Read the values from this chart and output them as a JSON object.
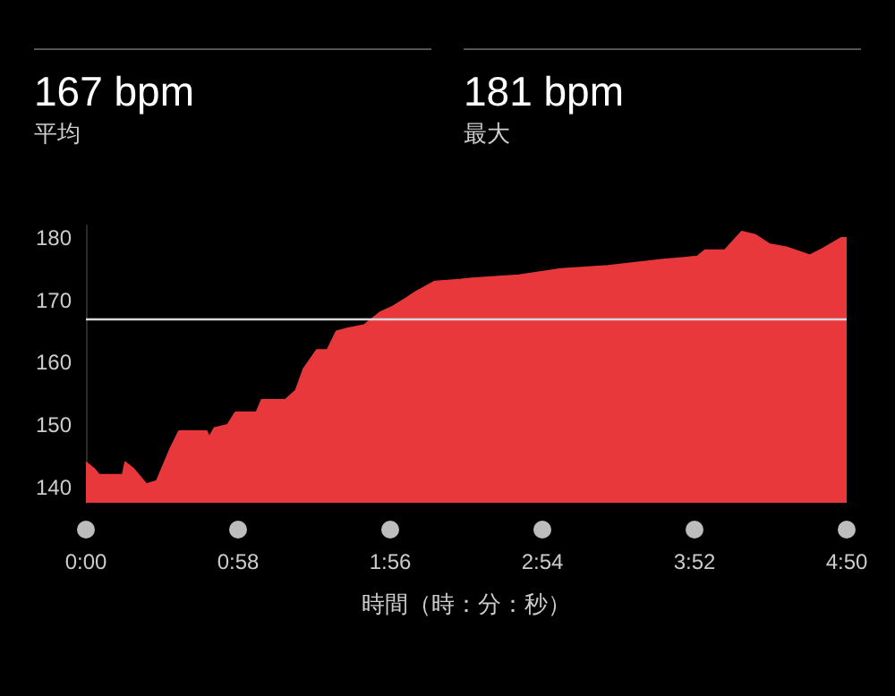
{
  "chart_data": {
    "type": "area",
    "xlabel": "時間（時：分：秒）",
    "annotations": [
      "167 bpm",
      "平均",
      "181 bpm",
      "最大"
    ],
    "x": [
      0,
      3,
      5,
      14,
      15,
      18,
      23,
      27,
      32,
      35.5,
      46,
      47,
      49,
      54,
      57,
      65,
      67,
      76,
      80,
      83,
      88,
      92,
      95.5,
      100,
      106,
      112,
      117,
      122,
      126,
      133,
      143,
      147,
      165,
      181,
      199,
      220,
      233,
      236,
      243.5,
      250,
      255,
      260.5,
      267,
      276,
      281,
      288,
      290
    ],
    "series": [
      {
        "color": "#e8383b",
        "values": [
          144,
          143,
          142,
          142,
          144,
          143,
          140.5,
          141,
          146,
          149,
          149,
          148,
          149.5,
          150,
          152,
          152,
          154,
          154,
          155.5,
          159,
          162,
          162,
          165,
          165.5,
          166,
          168,
          169,
          170.3,
          171.4,
          173,
          173.3,
          173.5,
          174,
          175,
          175.5,
          176.5,
          177,
          178,
          178,
          181,
          180.5,
          179,
          178.5,
          177.2,
          178.3,
          180,
          180
        ]
      }
    ],
    "xlim": [
      0,
      290
    ],
    "xticks": [
      {
        "value": 0,
        "label": "0:00"
      },
      {
        "value": 58,
        "label": "0:58"
      },
      {
        "value": 116,
        "label": "1:56"
      },
      {
        "value": 174,
        "label": "2:54"
      },
      {
        "value": 232,
        "label": "3:52"
      },
      {
        "value": 290,
        "label": "4:50"
      }
    ],
    "ylim": [
      137.5,
      182
    ],
    "yticks": [
      140,
      150,
      160,
      170,
      180
    ],
    "ref_lines": [
      {
        "axis": "y",
        "value": 167,
        "color": "#d8d8d8"
      }
    ],
    "grid": false,
    "marker": "none",
    "line_style": "solid"
  }
}
